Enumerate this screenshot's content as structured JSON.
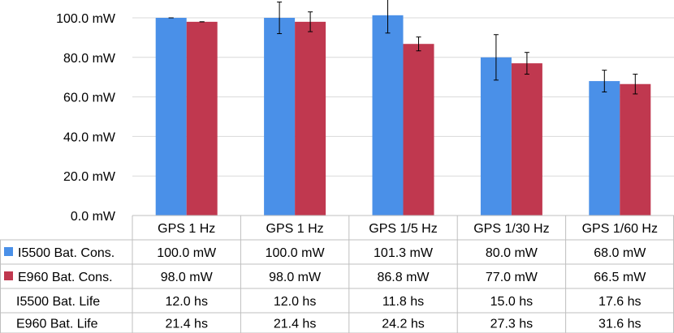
{
  "chart_data": {
    "type": "bar",
    "title": "",
    "xlabel": "",
    "ylabel": "",
    "ylim": [
      0,
      110
    ],
    "grid": true,
    "y_ticks": [
      0,
      20,
      40,
      60,
      80,
      100
    ],
    "y_tick_labels": [
      "0.0 mW",
      "20.0 mW",
      "40.0 mW",
      "60.0 mW",
      "80.0 mW",
      "100.0 mW"
    ],
    "categories": [
      "GPS 1 Hz",
      "GPS 1 Hz",
      "GPS 1/5 Hz",
      "GPS 1/30 Hz",
      "GPS 1/60 Hz"
    ],
    "series": [
      {
        "name": "I5500 Bat. Cons.",
        "color": "#4a90e8",
        "values": [
          100.0,
          100.0,
          101.3,
          80.0,
          68.0
        ],
        "error": [
          0.0,
          8.0,
          9.0,
          11.5,
          5.5
        ],
        "labels": [
          "100.0 mW",
          "100.0 mW",
          "101.3 mW",
          "80.0 mW",
          "68.0 mW"
        ]
      },
      {
        "name": "E960 Bat. Cons.",
        "color": "#c0384f",
        "values": [
          98.0,
          98.0,
          86.8,
          77.0,
          66.5
        ],
        "error": [
          0.0,
          5.0,
          3.5,
          5.5,
          5.0
        ],
        "labels": [
          "98.0 mW",
          "98.0 mW",
          "86.8 mW",
          "77.0 mW",
          "66.5 mW"
        ]
      }
    ],
    "table_rows": [
      {
        "name": "I5500 Bat. Life",
        "labels": [
          "12.0 hs",
          "12.0 hs",
          "11.8 hs",
          "15.0 hs",
          "17.6 hs"
        ]
      },
      {
        "name": "E960 Bat. Life",
        "labels": [
          "21.4 hs",
          "21.4 hs",
          "24.2 hs",
          "27.3 hs",
          "31.6 hs"
        ]
      }
    ]
  }
}
